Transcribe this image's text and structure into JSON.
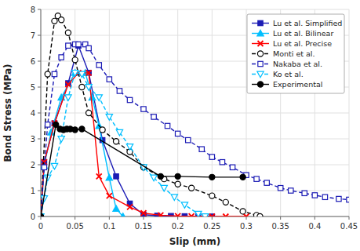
{
  "chart_data": {
    "type": "line",
    "xlabel": "Slip (mm)",
    "ylabel": "Bond Stress (MPa)",
    "xlim": [
      0,
      0.45
    ],
    "ylim": [
      0,
      8
    ],
    "xticks": [
      0,
      0.05,
      0.1,
      0.15,
      0.2,
      0.25,
      0.3,
      0.35,
      0.4,
      0.45
    ],
    "yticks": [
      0,
      1,
      2,
      3,
      4,
      5,
      6,
      7,
      8
    ],
    "grid": true,
    "legend": "upper right",
    "series": [
      {
        "name": "Lu et al. Simplified",
        "color": "#1c1cb5",
        "marker": "square",
        "line_style": "solid",
        "x": [
          0,
          0.005,
          0.02,
          0.04,
          0.055,
          0.07,
          0.09,
          0.11,
          0.13,
          0.15,
          0.17,
          0.19,
          0.21,
          0.23,
          0.25
        ],
        "values": [
          0,
          2.1,
          3.6,
          5.15,
          6.6,
          5.55,
          2.95,
          1.55,
          0.5,
          0.07,
          0.03,
          0.02,
          0.01,
          0.0,
          0.0
        ]
      },
      {
        "name": "Lu et al. Bilinear",
        "color": "#00BFFF",
        "marker": "triangle-up",
        "line_style": "solid",
        "x": [
          0,
          0.005,
          0.015,
          0.03,
          0.05,
          0.065,
          0.075,
          0.085,
          0.1,
          0.11,
          0.12
        ],
        "values": [
          0,
          1.95,
          3.25,
          4.6,
          5.55,
          5.55,
          4.6,
          3.5,
          1.5,
          0.3,
          0.0
        ]
      },
      {
        "name": "Lu et al. Precise",
        "color": "#FF0000",
        "marker": "x",
        "line_style": "solid",
        "x": [
          0,
          0.005,
          0.02,
          0.04,
          0.055,
          0.07,
          0.085,
          0.1,
          0.13,
          0.15,
          0.175,
          0.2,
          0.22,
          0.25,
          0.27,
          0.3
        ],
        "values": [
          0,
          2.1,
          3.6,
          5.1,
          5.55,
          5.55,
          1.55,
          0.8,
          0.37,
          0.13,
          0.05,
          0.02,
          0.01,
          0.0,
          0.0,
          0.0
        ]
      },
      {
        "name": "Monti et al.",
        "color": "#000000",
        "marker": "circle-open",
        "line_style": "dashed",
        "x": [
          0,
          0.01,
          0.02,
          0.025,
          0.03,
          0.04,
          0.05,
          0.06,
          0.07,
          0.09,
          0.11,
          0.13,
          0.15,
          0.18,
          0.2,
          0.22,
          0.25,
          0.27,
          0.295,
          0.315,
          0.32
        ],
        "values": [
          0,
          5.5,
          7.55,
          7.75,
          7.6,
          7.1,
          6.05,
          5.0,
          4.0,
          3.35,
          2.9,
          2.5,
          1.9,
          1.45,
          1.25,
          1.1,
          0.8,
          0.55,
          0.2,
          0.05,
          0.0
        ]
      },
      {
        "name": "Nakaba et al.",
        "color": "#1c1cb5",
        "marker": "square-open",
        "line_style": "dashed",
        "x": [
          0,
          0.005,
          0.01,
          0.02,
          0.03,
          0.04,
          0.05,
          0.055,
          0.065,
          0.07,
          0.085,
          0.1,
          0.115,
          0.13,
          0.15,
          0.165,
          0.185,
          0.2,
          0.215,
          0.235,
          0.25,
          0.265,
          0.28,
          0.3,
          0.315,
          0.33,
          0.35,
          0.365,
          0.385,
          0.4,
          0.415,
          0.435,
          0.45
        ],
        "values": [
          0,
          1.9,
          3.55,
          5.5,
          6.15,
          6.6,
          6.65,
          6.65,
          6.65,
          6.5,
          5.85,
          5.3,
          4.85,
          4.5,
          4.15,
          3.85,
          3.5,
          3.2,
          2.95,
          2.6,
          2.3,
          2.1,
          1.9,
          1.6,
          1.45,
          1.3,
          1.1,
          1.0,
          0.9,
          0.82,
          0.75,
          0.68,
          0.65
        ]
      },
      {
        "name": "Ko et al.",
        "color": "#00BFFF",
        "marker": "triangle-down-open",
        "line_style": "dashed",
        "x": [
          0,
          0.005,
          0.01,
          0.02,
          0.03,
          0.04,
          0.05,
          0.06,
          0.07,
          0.085,
          0.1,
          0.115,
          0.13,
          0.15,
          0.165,
          0.18,
          0.195,
          0.21,
          0.23,
          0.24
        ],
        "values": [
          0,
          0.7,
          1.5,
          1.95,
          3.0,
          4.6,
          5.55,
          5.5,
          5.0,
          4.6,
          3.85,
          3.25,
          2.7,
          1.9,
          1.5,
          1.1,
          0.75,
          0.45,
          0.1,
          0.0
        ]
      },
      {
        "name": "Experimental",
        "color": "#000000",
        "marker": "circle",
        "line_style": "solid",
        "x": [
          0,
          0.022,
          0.028,
          0.033,
          0.038,
          0.043,
          0.05,
          0.06,
          0.175,
          0.2,
          0.25,
          0.295
        ],
        "values": [
          0,
          3.55,
          3.38,
          3.35,
          3.38,
          3.38,
          3.35,
          3.38,
          1.55,
          1.55,
          1.52,
          1.52
        ]
      }
    ]
  }
}
